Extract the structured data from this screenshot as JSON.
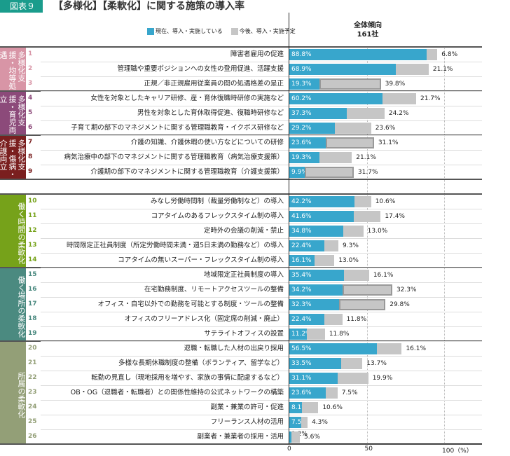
{
  "header": {
    "badge": "図表９",
    "title": "【多様化】【柔軟化】に関する施策の導入率"
  },
  "legend": {
    "current": "現在、導入・実施している",
    "planned": "今後、導入・実施予定"
  },
  "colors": {
    "current": "#38a6cc",
    "planned": "#c6c6c6"
  },
  "column_header": {
    "line1": "全体傾向",
    "line2": "161社"
  },
  "groups": [
    {
      "label": "多様化支援・均等処遇",
      "color": "#d895a6",
      "from": 1,
      "to": 3
    },
    {
      "label": "多様化支援・育児両立",
      "color": "#8c4a7a",
      "from": 4,
      "to": 6
    },
    {
      "label": "多様化支援・傷病・介護両立",
      "color": "#7a1f1f",
      "from": 7,
      "to": 9
    },
    {
      "label": "働く時間の柔軟化",
      "color": "#76a21a",
      "from": 10,
      "to": 14
    },
    {
      "label": "働く場所の柔軟化",
      "color": "#4b8a80",
      "from": 15,
      "to": 19
    },
    {
      "label": "所属の柔軟化",
      "color": "#939f77",
      "from": 20,
      "to": 26
    }
  ],
  "chart_data": {
    "type": "bar",
    "stacked": true,
    "orientation": "horizontal",
    "title": "全体傾向 161社",
    "xlim": [
      0,
      100
    ],
    "xticks": [
      "0",
      "50",
      "100（%）"
    ],
    "series": [
      {
        "name": "現在、導入・実施している"
      },
      {
        "name": "今後、導入・実施予定"
      }
    ],
    "items": [
      {
        "no": "1",
        "label": "障害者雇用の促進",
        "current": 88.8,
        "planned": 6.8,
        "highlight": false
      },
      {
        "no": "2",
        "label": "管理職や重要ポジションへの女性の登用促進、活躍支援",
        "current": 68.9,
        "planned": 21.1,
        "highlight": false
      },
      {
        "no": "3",
        "label": "正規／非正規雇用従業員の間の処遇格差の是正",
        "current": 19.3,
        "planned": 39.8,
        "highlight": true
      },
      {
        "no": "4",
        "label": "女性を対象としたキャリア研修、産・育休復職時研修の実施など",
        "current": 60.2,
        "planned": 21.7,
        "highlight": false
      },
      {
        "no": "5",
        "label": "男性を対象とした育休取得促進、復職時研修など",
        "current": 37.3,
        "planned": 24.2,
        "highlight": false
      },
      {
        "no": "6",
        "label": "子育て期の部下のマネジメントに関する管理職教育・イクボス研修など",
        "current": 29.2,
        "planned": 23.6,
        "highlight": false
      },
      {
        "no": "7",
        "label": "介護の知識、介護休暇の使い方などについての研修",
        "current": 23.6,
        "planned": 31.1,
        "highlight": true
      },
      {
        "no": "8",
        "label": "病気治療中の部下のマネジメントに関する管理職教育（病気治療支援策）",
        "current": 19.3,
        "planned": 21.1,
        "highlight": false
      },
      {
        "no": "9",
        "label": "介護期の部下のマネジメントに関する管理職教育（介護支援策）",
        "current": 9.9,
        "planned": 31.7,
        "highlight": true
      },
      {
        "no": "10",
        "label": "みなし労働時間制（裁量労働制など）の導入",
        "current": 42.2,
        "planned": 10.6,
        "highlight": false
      },
      {
        "no": "11",
        "label": "コアタイムのあるフレックスタイム制の導入",
        "current": 41.6,
        "planned": 17.4,
        "highlight": false
      },
      {
        "no": "12",
        "label": "定時外の会議の削減・禁止",
        "current": 34.8,
        "planned": 13.0,
        "highlight": false
      },
      {
        "no": "13",
        "label": "時間限定正社員制度（所定労働時間未満・週5日未満の勤務など）の導入",
        "current": 22.4,
        "planned": 9.3,
        "highlight": false
      },
      {
        "no": "14",
        "label": "コアタイムの無いスーパー・フレックスタイム制の導入",
        "current": 16.1,
        "planned": 13.0,
        "highlight": false
      },
      {
        "no": "15",
        "label": "地域限定正社員制度の導入",
        "current": 35.4,
        "planned": 16.1,
        "highlight": false
      },
      {
        "no": "16",
        "label": "在宅勤務制度、リモートアクセスツールの整備",
        "current": 34.2,
        "planned": 32.3,
        "highlight": true
      },
      {
        "no": "17",
        "label": "オフィス・自宅以外での勤務を可能とする制度・ツールの整備",
        "current": 32.3,
        "planned": 29.8,
        "highlight": true
      },
      {
        "no": "18",
        "label": "オフィスのフリーアドレス化（固定席の削減・廃止）",
        "current": 22.4,
        "planned": 11.8,
        "highlight": false
      },
      {
        "no": "19",
        "label": "サテライトオフィスの設置",
        "current": 11.2,
        "planned": 11.8,
        "highlight": false
      },
      {
        "no": "20",
        "label": "退職・転職した人材の出戻り採用",
        "current": 56.5,
        "planned": 16.1,
        "highlight": false
      },
      {
        "no": "21",
        "label": "多様な長期休職制度の整備（ボランティア、留学など）",
        "current": 33.5,
        "planned": 13.7,
        "highlight": false
      },
      {
        "no": "22",
        "label": "転勤の見直し（現地採用を増やす、家族の事情に配慮するなど）",
        "current": 31.1,
        "planned": 19.9,
        "highlight": false
      },
      {
        "no": "23",
        "label": "OB・OG（退職者・転職者）との関係性維持の公式ネットワークの構築",
        "current": 23.6,
        "planned": 7.5,
        "highlight": false
      },
      {
        "no": "24",
        "label": "副業・兼業の許可・促進",
        "current": 8.1,
        "planned": 10.6,
        "highlight": false
      },
      {
        "no": "25",
        "label": "フリーランス人材の活用",
        "current": 7.5,
        "planned": 4.3,
        "highlight": false
      },
      {
        "no": "26",
        "label": "副業者・兼業者の採用・活用",
        "current": 1.2,
        "planned": 5.6,
        "highlight": false
      }
    ]
  }
}
